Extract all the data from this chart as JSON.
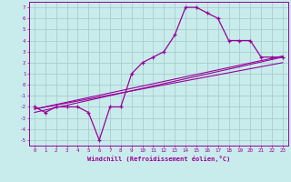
{
  "title": "",
  "xlabel": "Windchill (Refroidissement éolien,°C)",
  "background_color": "#c8ecec",
  "line_color": "#990099",
  "grid_color": "#aacccc",
  "line1_x": [
    0,
    1,
    2,
    3,
    4,
    5,
    6,
    7,
    8,
    9,
    10,
    11,
    12,
    13,
    14,
    15,
    16,
    17,
    18,
    19,
    20,
    21,
    22,
    23
  ],
  "line1_y": [
    -2,
    -2.5,
    -2,
    -2,
    -2,
    -2.5,
    -5,
    -2,
    -2,
    1,
    2,
    2.5,
    3,
    4.5,
    7,
    7,
    6.5,
    6,
    4,
    4,
    4,
    2.5,
    2.5,
    2.5
  ],
  "line2_x": [
    0,
    23
  ],
  "line2_y": [
    -2.2,
    2.6
  ],
  "line3_x": [
    0,
    23
  ],
  "line3_y": [
    -2.2,
    2.0
  ],
  "line4_x": [
    0,
    23
  ],
  "line4_y": [
    -2.5,
    2.5
  ],
  "xlim": [
    -0.5,
    23.5
  ],
  "ylim": [
    -5.5,
    7.5
  ],
  "xticks": [
    0,
    1,
    2,
    3,
    4,
    5,
    6,
    7,
    8,
    9,
    10,
    11,
    12,
    13,
    14,
    15,
    16,
    17,
    18,
    19,
    20,
    21,
    22,
    23
  ],
  "yticks": [
    -5,
    -4,
    -3,
    -2,
    -1,
    0,
    1,
    2,
    3,
    4,
    5,
    6,
    7
  ]
}
